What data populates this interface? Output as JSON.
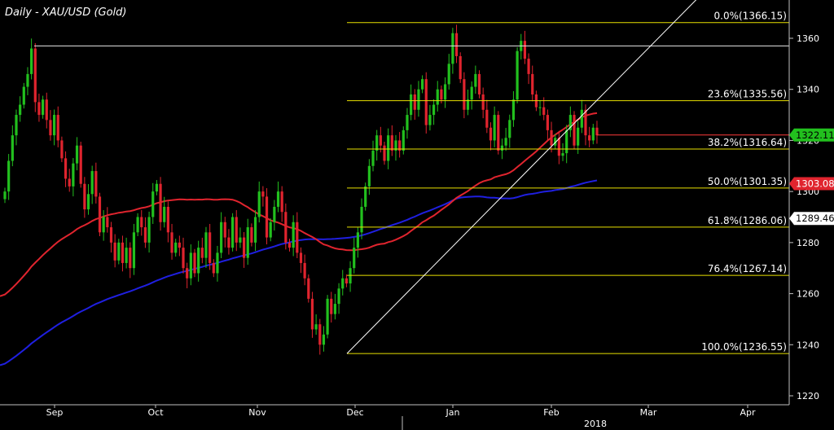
{
  "chart_data": {
    "type": "candlestick",
    "title": "Daily - XAU/USD (Gold)",
    "ylim": [
      1215,
      1370
    ],
    "y_ticks": [
      1220,
      1240,
      1260,
      1280,
      1300,
      1320,
      1340,
      1360
    ],
    "x_labels": [
      "Sep",
      "Oct",
      "Nov",
      "Dec",
      "Jan",
      "Feb",
      "Mar",
      "Apr"
    ],
    "year_label": "2018",
    "last_price": "1322.11",
    "ma_red_last": "1303.08",
    "ma_blue_last": "1289.46",
    "fib_levels": [
      {
        "label": "0.0%(1366.15)",
        "value": 1366.15
      },
      {
        "label": "23.6%(1335.56)",
        "value": 1335.56
      },
      {
        "label": "38.2%(1316.64)",
        "value": 1316.64
      },
      {
        "label": "50.0%(1301.35)",
        "value": 1301.35
      },
      {
        "label": "61.8%(1286.06)",
        "value": 1286.06
      },
      {
        "label": "76.4%(1267.14)",
        "value": 1267.14
      },
      {
        "label": "100.0%(1236.55)",
        "value": 1236.55
      }
    ],
    "resistance_level": 1357,
    "trendline": {
      "from_value": 1236.55,
      "to_value": 1380
    },
    "closes": [
      1300,
      1312,
      1322,
      1330,
      1334,
      1341,
      1346,
      1356,
      1335,
      1330,
      1336,
      1328,
      1322,
      1330,
      1320,
      1313,
      1305,
      1302,
      1311,
      1318,
      1303,
      1293,
      1299,
      1308,
      1298,
      1284,
      1290,
      1286,
      1280,
      1273,
      1280,
      1272,
      1278,
      1270,
      1284,
      1290,
      1286,
      1280,
      1290,
      1300,
      1303,
      1288,
      1294,
      1284,
      1276,
      1280,
      1278,
      1270,
      1266,
      1276,
      1268,
      1278,
      1274,
      1284,
      1272,
      1268,
      1276,
      1288,
      1282,
      1278,
      1290,
      1280,
      1282,
      1274,
      1286,
      1280,
      1290,
      1300,
      1298,
      1282,
      1288,
      1294,
      1300,
      1292,
      1280,
      1278,
      1288,
      1276,
      1272,
      1266,
      1258,
      1246,
      1248,
      1240,
      1244,
      1258,
      1252,
      1256,
      1262,
      1266,
      1264,
      1270,
      1278,
      1284,
      1294,
      1302,
      1310,
      1316,
      1322,
      1318,
      1312,
      1322,
      1316,
      1320,
      1316,
      1324,
      1330,
      1338,
      1332,
      1340,
      1344,
      1326,
      1330,
      1334,
      1340,
      1336,
      1342,
      1350,
      1362,
      1353,
      1344,
      1332,
      1336,
      1341,
      1346,
      1338,
      1332,
      1325,
      1320,
      1330,
      1316,
      1318,
      1321,
      1328,
      1336,
      1355,
      1359,
      1352,
      1346,
      1338,
      1333,
      1333,
      1330,
      1324,
      1318,
      1321,
      1314,
      1315,
      1324,
      1330,
      1318,
      1325,
      1332,
      1322,
      1320,
      1325,
      1322
    ]
  }
}
